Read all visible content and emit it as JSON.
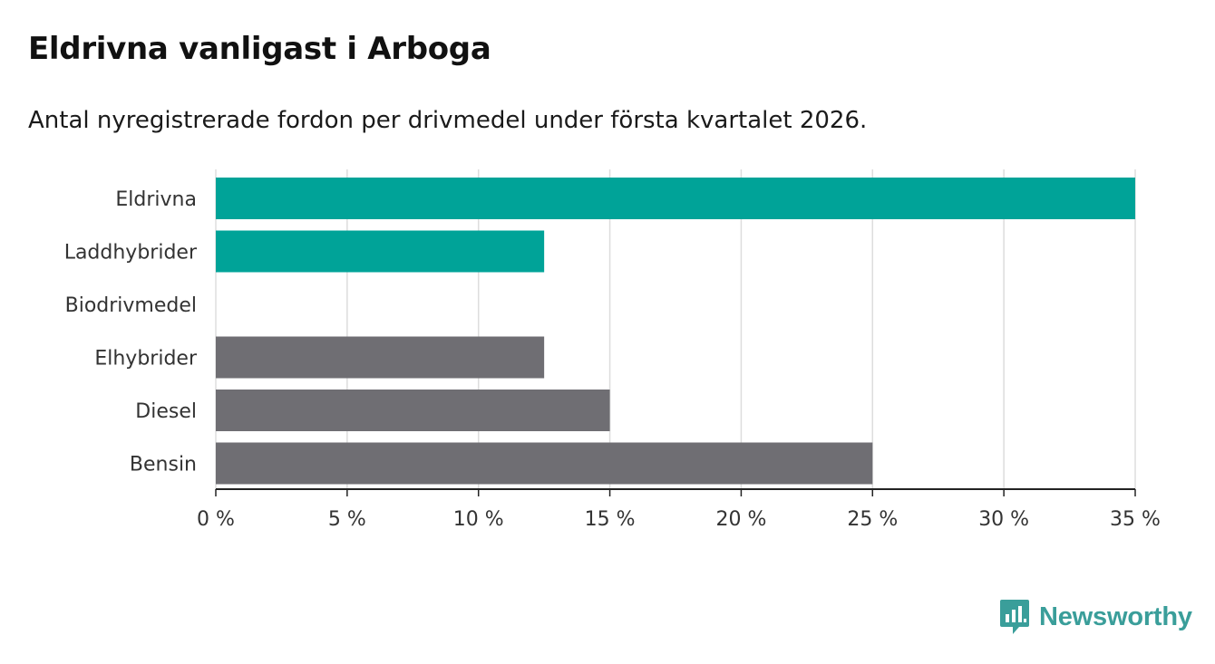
{
  "header": {
    "title": "Eldrivna vanligast i Arboga",
    "subtitle": "Antal nyregistrerade fordon per drivmedel under första kvartalet 2026."
  },
  "brand": {
    "name": "Newsworthy",
    "color": "#3a9e9a",
    "icon": "newsworthy-chart-bubble-icon"
  },
  "colors": {
    "highlight": "#00a398",
    "default": "#6f6e73",
    "grid": "#dddddd",
    "axis": "#222222"
  },
  "chart_data": {
    "type": "bar",
    "orientation": "horizontal",
    "title": "Eldrivna vanligast i Arboga",
    "subtitle": "Antal nyregistrerade fordon per drivmedel under första kvartalet 2026.",
    "categories": [
      "Eldrivna",
      "Laddhybrider",
      "Biodrivmedel",
      "Elhybrider",
      "Diesel",
      "Bensin"
    ],
    "values": [
      35,
      12.5,
      0,
      12.5,
      15,
      25
    ],
    "highlighted": [
      true,
      true,
      false,
      false,
      false,
      false
    ],
    "unit": "%",
    "xlim": [
      0,
      35
    ],
    "xticks": [
      0,
      5,
      10,
      15,
      20,
      25,
      30,
      35
    ],
    "xtick_labels": [
      "0 %",
      "5 %",
      "10 %",
      "15 %",
      "20 %",
      "25 %",
      "30 %",
      "35 %"
    ],
    "xlabel": "",
    "ylabel": "",
    "grid": true,
    "legend": "none"
  }
}
